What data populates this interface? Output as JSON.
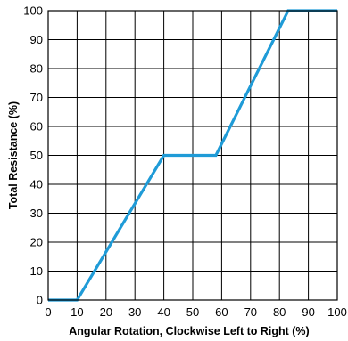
{
  "chart_data": {
    "type": "line",
    "title": "",
    "xlabel": "Angular Rotation, Clockwise Left to Right (%)",
    "ylabel": "Total Resistance (%)",
    "xlim": [
      0,
      100
    ],
    "ylim": [
      0,
      100
    ],
    "x_ticks": [
      0,
      10,
      20,
      30,
      40,
      50,
      60,
      70,
      80,
      90,
      100
    ],
    "y_ticks": [
      0,
      10,
      20,
      30,
      40,
      50,
      60,
      70,
      80,
      90,
      100
    ],
    "grid": true,
    "legend": "none",
    "series": [
      {
        "color": "#1f9bd7",
        "x": [
          0,
          10,
          40,
          58,
          83,
          100
        ],
        "y": [
          0,
          0,
          50,
          50,
          100,
          100
        ]
      }
    ]
  }
}
